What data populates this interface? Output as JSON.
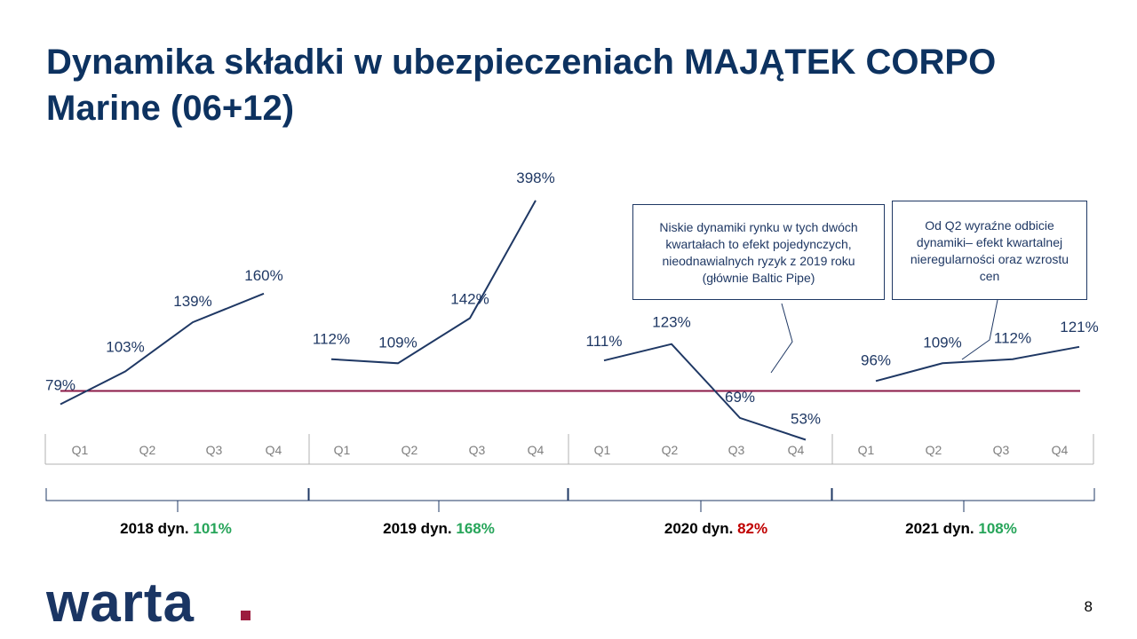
{
  "slide": {
    "title": "Dynamika składki w ubezpieczeniach MAJĄTEK CORPO Marine (06+12)",
    "page_number": "8",
    "logo_text": "warta",
    "colors": {
      "title": "#0d3260",
      "line": "#1f3864",
      "reference_line": "#8b1a47",
      "positive": "#27a55a",
      "negative": "#c00000",
      "logo": "#1a3563",
      "logo_dot": "#9c1c3e"
    }
  },
  "notes": [
    "Niskie dynamiki rynku w tych dwóch kwartałach to efekt pojedynczych, nieodnawialnych ryzyk z 2019 roku (głównie Baltic Pipe)",
    "Od Q2 wyraźne odbicie dynamiki– efekt kwartalnej nieregularności oraz wzrostu cen"
  ],
  "years": [
    {
      "label": "2018 dyn.",
      "value": "101%",
      "sign": "pos"
    },
    {
      "label": "2019 dyn.",
      "value": "168%",
      "sign": "pos"
    },
    {
      "label": "2020 dyn.",
      "value": "82%",
      "sign": "neg"
    },
    {
      "label": "2021 dyn.",
      "value": "108%",
      "sign": "pos"
    }
  ],
  "chart_data": {
    "type": "line",
    "title": "",
    "xlabel": "",
    "ylabel": "",
    "quarters": [
      "Q1",
      "Q2",
      "Q3",
      "Q4"
    ],
    "groups": [
      "2018",
      "2019",
      "2020",
      "2021"
    ],
    "series": [
      {
        "values": [
          79,
          103,
          139,
          160
        ]
      },
      {
        "values": [
          112,
          109,
          142,
          398
        ]
      },
      {
        "values": [
          111,
          123,
          69,
          53
        ]
      },
      {
        "values": [
          96,
          109,
          112,
          121
        ]
      }
    ],
    "value_suffix": "%",
    "reference_line": 100,
    "ylim": [
      40,
      400
    ],
    "grid": false,
    "legend": "none"
  }
}
